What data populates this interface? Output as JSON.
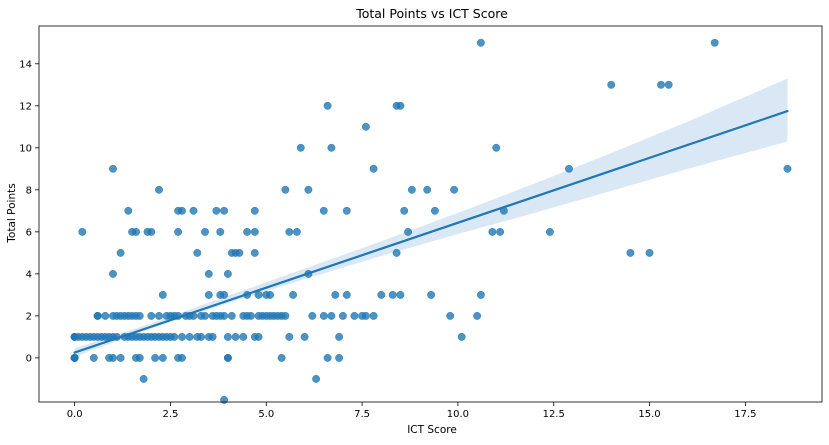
{
  "chart_data": {
    "type": "scatter",
    "title": "Total Points vs ICT Score",
    "xlabel": "ICT Score",
    "ylabel": "Total Points",
    "xlim": [
      -0.93,
      19.5
    ],
    "ylim": [
      -2.1,
      15.8
    ],
    "xticks": [
      0.0,
      2.5,
      5.0,
      7.5,
      10.0,
      12.5,
      15.0,
      17.5
    ],
    "xtick_labels": [
      "0.0",
      "2.5",
      "5.0",
      "7.5",
      "10.0",
      "12.5",
      "15.0",
      "17.5"
    ],
    "yticks": [
      0,
      2,
      4,
      6,
      8,
      10,
      12,
      14
    ],
    "ytick_labels": [
      "0",
      "2",
      "4",
      "6",
      "8",
      "10",
      "12",
      "14"
    ],
    "grid": false,
    "point_color": "#1f77b4",
    "line_color": "#1f77b4",
    "band_color": "#c6dbef",
    "regression": {
      "x": [
        0.0,
        18.6
      ],
      "y": [
        0.25,
        11.75
      ],
      "ci_lower": [
        [
          0.0,
          0.05
        ],
        [
          2.0,
          1.4
        ],
        [
          4.0,
          2.6
        ],
        [
          6.0,
          3.75
        ],
        [
          8.0,
          4.85
        ],
        [
          10.0,
          5.9
        ],
        [
          12.0,
          6.9
        ],
        [
          14.0,
          7.95
        ],
        [
          16.0,
          9.0
        ],
        [
          18.6,
          10.3
        ]
      ],
      "ci_upper": [
        [
          0.0,
          0.45
        ],
        [
          2.0,
          1.65
        ],
        [
          4.0,
          2.95
        ],
        [
          6.0,
          4.25
        ],
        [
          8.0,
          5.55
        ],
        [
          10.0,
          6.9
        ],
        [
          12.0,
          8.3
        ],
        [
          14.0,
          9.75
        ],
        [
          16.0,
          11.25
        ],
        [
          18.6,
          13.3
        ]
      ]
    },
    "points": [
      [
        0,
        0
      ],
      [
        0,
        0
      ],
      [
        0,
        0
      ],
      [
        0,
        0
      ],
      [
        0,
        0
      ],
      [
        0,
        0
      ],
      [
        0,
        1
      ],
      [
        0,
        1
      ],
      [
        0,
        1
      ],
      [
        0,
        1
      ],
      [
        0.1,
        1
      ],
      [
        0.2,
        1
      ],
      [
        0.2,
        6
      ],
      [
        0.3,
        1
      ],
      [
        0.4,
        1
      ],
      [
        0.5,
        1
      ],
      [
        0.5,
        0
      ],
      [
        0.6,
        1
      ],
      [
        0.6,
        2
      ],
      [
        0.6,
        2
      ],
      [
        0.7,
        1
      ],
      [
        0.8,
        1
      ],
      [
        0.8,
        2
      ],
      [
        0.9,
        1
      ],
      [
        0.9,
        0
      ],
      [
        1.0,
        1
      ],
      [
        1.0,
        4
      ],
      [
        1.0,
        9
      ],
      [
        1.0,
        2
      ],
      [
        1.0,
        0
      ],
      [
        1.1,
        2
      ],
      [
        1.1,
        1
      ],
      [
        1.2,
        0
      ],
      [
        1.2,
        5
      ],
      [
        1.2,
        2
      ],
      [
        1.3,
        2
      ],
      [
        1.3,
        1
      ],
      [
        1.4,
        2
      ],
      [
        1.4,
        1
      ],
      [
        1.4,
        7
      ],
      [
        1.5,
        2
      ],
      [
        1.5,
        6
      ],
      [
        1.5,
        1
      ],
      [
        1.6,
        2
      ],
      [
        1.6,
        0
      ],
      [
        1.6,
        6
      ],
      [
        1.6,
        1
      ],
      [
        1.7,
        2
      ],
      [
        1.7,
        0
      ],
      [
        1.7,
        1
      ],
      [
        1.8,
        1
      ],
      [
        1.8,
        -1
      ],
      [
        1.9,
        1
      ],
      [
        1.9,
        6
      ],
      [
        2.0,
        1
      ],
      [
        2.0,
        6
      ],
      [
        2.0,
        2
      ],
      [
        2.1,
        1
      ],
      [
        2.1,
        0
      ],
      [
        2.2,
        8
      ],
      [
        2.2,
        2
      ],
      [
        2.2,
        1
      ],
      [
        2.3,
        1
      ],
      [
        2.3,
        3
      ],
      [
        2.3,
        0
      ],
      [
        2.4,
        1
      ],
      [
        2.4,
        2
      ],
      [
        2.5,
        2
      ],
      [
        2.5,
        1
      ],
      [
        2.6,
        2
      ],
      [
        2.6,
        1
      ],
      [
        2.7,
        0
      ],
      [
        2.7,
        2
      ],
      [
        2.7,
        6
      ],
      [
        2.7,
        7
      ],
      [
        2.8,
        7
      ],
      [
        2.8,
        1
      ],
      [
        2.8,
        0
      ],
      [
        2.9,
        2
      ],
      [
        3.0,
        1
      ],
      [
        3.0,
        2
      ],
      [
        3.1,
        2
      ],
      [
        3.1,
        7
      ],
      [
        3.2,
        1
      ],
      [
        3.2,
        5
      ],
      [
        3.3,
        2
      ],
      [
        3.3,
        1
      ],
      [
        3.4,
        6
      ],
      [
        3.4,
        2
      ],
      [
        3.5,
        3
      ],
      [
        3.5,
        4
      ],
      [
        3.5,
        1
      ],
      [
        3.6,
        2
      ],
      [
        3.6,
        1
      ],
      [
        3.7,
        2
      ],
      [
        3.7,
        7
      ],
      [
        3.8,
        2
      ],
      [
        3.8,
        3
      ],
      [
        3.8,
        6
      ],
      [
        3.9,
        7
      ],
      [
        3.9,
        -2
      ],
      [
        3.9,
        3
      ],
      [
        3.9,
        2
      ],
      [
        4.0,
        0
      ],
      [
        4.0,
        4
      ],
      [
        4.0,
        0
      ],
      [
        4.0,
        1
      ],
      [
        4.1,
        2
      ],
      [
        4.1,
        5
      ],
      [
        4.2,
        5
      ],
      [
        4.2,
        1
      ],
      [
        4.3,
        5
      ],
      [
        4.4,
        2
      ],
      [
        4.4,
        1
      ],
      [
        4.5,
        2
      ],
      [
        4.5,
        6
      ],
      [
        4.5,
        3
      ],
      [
        4.6,
        2
      ],
      [
        4.7,
        1
      ],
      [
        4.7,
        6
      ],
      [
        4.7,
        7
      ],
      [
        4.7,
        5
      ],
      [
        4.8,
        2
      ],
      [
        4.8,
        1
      ],
      [
        4.8,
        3
      ],
      [
        4.9,
        2
      ],
      [
        5.0,
        3
      ],
      [
        5.0,
        2
      ],
      [
        5.1,
        3
      ],
      [
        5.1,
        2
      ],
      [
        5.2,
        2
      ],
      [
        5.3,
        2
      ],
      [
        5.4,
        2
      ],
      [
        5.4,
        0
      ],
      [
        5.5,
        8
      ],
      [
        5.5,
        2
      ],
      [
        5.6,
        1
      ],
      [
        5.6,
        6
      ],
      [
        5.7,
        3
      ],
      [
        5.8,
        6
      ],
      [
        5.9,
        10
      ],
      [
        6.0,
        1
      ],
      [
        6.1,
        4
      ],
      [
        6.1,
        8
      ],
      [
        6.2,
        2
      ],
      [
        6.3,
        -1
      ],
      [
        6.5,
        2
      ],
      [
        6.5,
        7
      ],
      [
        6.6,
        12
      ],
      [
        6.6,
        0
      ],
      [
        6.7,
        10
      ],
      [
        6.7,
        2
      ],
      [
        6.8,
        3
      ],
      [
        6.9,
        1
      ],
      [
        6.9,
        0
      ],
      [
        7.0,
        2
      ],
      [
        7.1,
        7
      ],
      [
        7.1,
        3
      ],
      [
        7.3,
        2
      ],
      [
        7.5,
        2
      ],
      [
        7.6,
        11
      ],
      [
        7.6,
        2
      ],
      [
        7.8,
        2
      ],
      [
        7.8,
        9
      ],
      [
        8.0,
        3
      ],
      [
        8.3,
        3
      ],
      [
        8.4,
        12
      ],
      [
        8.4,
        5
      ],
      [
        8.5,
        12
      ],
      [
        8.5,
        3
      ],
      [
        8.6,
        7
      ],
      [
        8.7,
        6
      ],
      [
        8.8,
        8
      ],
      [
        9.2,
        8
      ],
      [
        9.3,
        3
      ],
      [
        9.4,
        7
      ],
      [
        9.8,
        2
      ],
      [
        9.9,
        8
      ],
      [
        10.1,
        1
      ],
      [
        10.5,
        2
      ],
      [
        10.6,
        3
      ],
      [
        10.6,
        15
      ],
      [
        10.9,
        6
      ],
      [
        11.0,
        10
      ],
      [
        11.1,
        6
      ],
      [
        11.2,
        7
      ],
      [
        12.4,
        6
      ],
      [
        12.9,
        9
      ],
      [
        14.0,
        13
      ],
      [
        14.5,
        5
      ],
      [
        15.0,
        5
      ],
      [
        15.3,
        13
      ],
      [
        15.5,
        13
      ],
      [
        16.7,
        15
      ],
      [
        18.6,
        9
      ]
    ]
  }
}
